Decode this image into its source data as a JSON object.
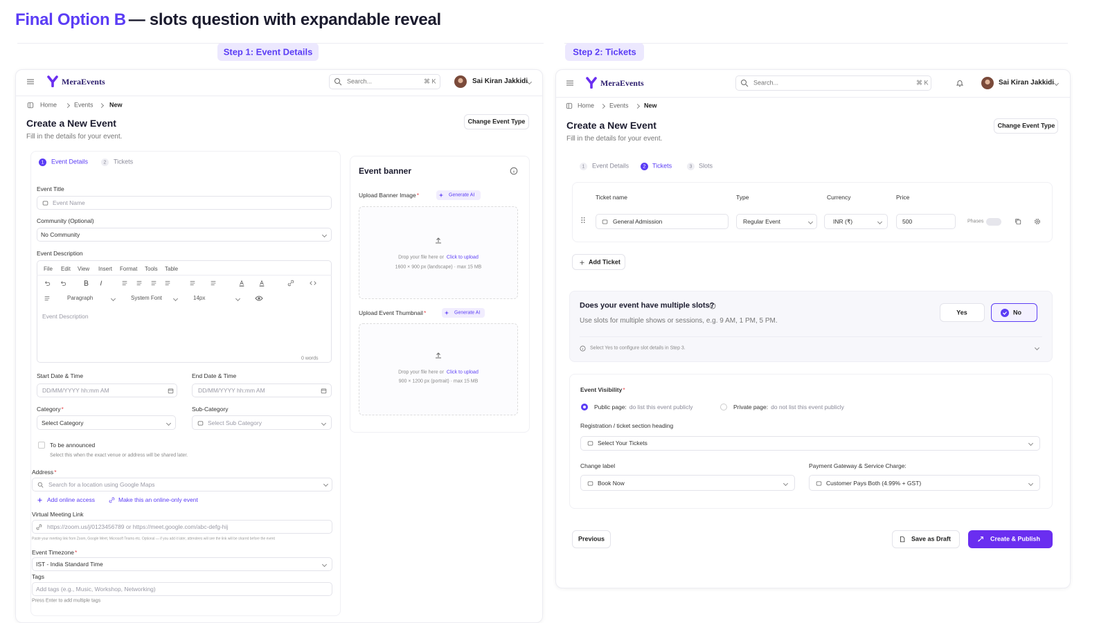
{
  "header": {
    "title_highlight": "Final Option B",
    "title_rest": "— slots question with expandable reveal"
  },
  "common": {
    "required": "*"
  },
  "steps": [
    "Step 1: Event Details",
    "Step 2: Tickets"
  ],
  "app": {
    "brand": "MeraEvents",
    "search": "Search...",
    "shortcut": "⌘ K",
    "user": "Sai Kiran Jakkidi",
    "breadcrumb": [
      "Home",
      "Events",
      "New"
    ],
    "page_title": "Create a New Event",
    "page_subtitle": "Fill in the details for your event.",
    "change_type": "Change Event Type",
    "tabs": [
      {
        "num": "1",
        "label": "Event Details"
      },
      {
        "num": "2",
        "label": "Tickets"
      },
      {
        "num": "3",
        "label": "Slots"
      }
    ]
  },
  "step1": {
    "form": {
      "event_title": {
        "label": "Event Title",
        "placeholder": "Event Name"
      },
      "community": {
        "label": "Community (Optional)",
        "value": "No Community"
      },
      "description": {
        "label": "Event Description",
        "menu": [
          "File",
          "Edit",
          "View",
          "Insert",
          "Format",
          "Tools",
          "Table"
        ],
        "block_format": "Paragraph",
        "font": "System Font",
        "size": "14px",
        "placeholder": "Event Description",
        "word_count": "0 words"
      },
      "start": {
        "label": "Start Date & Time",
        "placeholder": "DD/MM/YYYY hh:mm AM"
      },
      "end": {
        "label": "End Date & Time",
        "placeholder": "DD/MM/YYYY hh:mm AM"
      },
      "category": {
        "label": "Category",
        "value": "Select Category"
      },
      "sub_category": {
        "label": "Sub-Category",
        "value": "Select Sub Category"
      },
      "tba": {
        "label": "To be announced",
        "hint": "Select this when the exact venue or address will be shared later."
      },
      "address": {
        "label": "Address",
        "placeholder": "Search for a location using Google Maps"
      },
      "online_links": [
        "Add online access",
        "Make this an online-only event"
      ],
      "meeting": {
        "label": "Virtual Meeting Link",
        "placeholder": "https://zoom.us/j/0123456789 or https://meet.google.com/abc-defg-hij",
        "hint": "Paste your meeting link from Zoom, Google Meet, Microsoft Teams etc. Optional — if you add it later, attendees will see the link will be shared before the event"
      },
      "timezone": {
        "label": "Event Timezone",
        "value": "IST - India Standard Time"
      },
      "tags": {
        "label": "Tags",
        "placeholder": "Add tags (e.g., Music, Workshop, Networking)",
        "hint": "Press Enter to add multiple tags"
      }
    },
    "banner": {
      "title": "Event banner",
      "generate": "Generate AI",
      "drop": "Drop your file here or",
      "upload_link": "Click to upload",
      "uploads": [
        {
          "label": "Upload Banner Image",
          "spec": "1600 × 900 px (landscape) · max 15 MB"
        },
        {
          "label": "Upload Event Thumbnail",
          "spec": "900 × 1200 px (portrait) · max 15 MB"
        }
      ]
    }
  },
  "step2": {
    "tickets": {
      "headers": [
        "Ticket name",
        "Type",
        "Currency",
        "Price"
      ],
      "row": {
        "name": "General Admission",
        "type": "Regular Event",
        "currency": "INR (₹)",
        "price": "500",
        "phases": "Phases"
      },
      "add": "Add Ticket"
    },
    "slots": {
      "question": "Does your event have multiple slots?",
      "description": "Use slots for multiple shows or sessions, e.g. 9 AM, 1 PM, 5 PM.",
      "yes": "Yes",
      "no": "No",
      "hint": "Select Yes to configure slot details in Step 3."
    },
    "visibility": {
      "label": "Event Visibility",
      "public": {
        "label": "Public page:",
        "desc": "do list this event publicly"
      },
      "private": {
        "label": "Private page:",
        "desc": "do not list this event publicly"
      }
    },
    "heading": {
      "label": "Registration / ticket section heading",
      "value": "Select Your Tickets"
    },
    "change_label": {
      "label": "Change label",
      "value": "Book Now"
    },
    "gateway": {
      "label": "Payment Gateway & Service Charge:",
      "value": "Customer Pays Both (4.99% + GST)"
    },
    "actions": {
      "previous": "Previous",
      "save": "Save as Draft",
      "publish": "Create & Publish"
    }
  }
}
